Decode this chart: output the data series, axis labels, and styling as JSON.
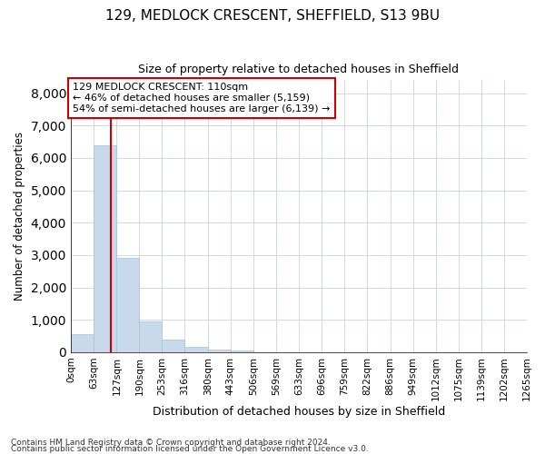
{
  "title1": "129, MEDLOCK CRESCENT, SHEFFIELD, S13 9BU",
  "title2": "Size of property relative to detached houses in Sheffield",
  "xlabel": "Distribution of detached houses by size in Sheffield",
  "ylabel": "Number of detached properties",
  "footer1": "Contains HM Land Registry data © Crown copyright and database right 2024.",
  "footer2": "Contains public sector information licensed under the Open Government Licence v3.0.",
  "bar_color": "#c8d9ec",
  "bar_edge_color": "#a8c0d8",
  "grid_color": "#d0d8e8",
  "annotation_line_color": "#cc0000",
  "annotation_box_color": "#cc0000",
  "annotation_text": "129 MEDLOCK CRESCENT: 110sqm\n← 46% of detached houses are smaller (5,159)\n54% of semi-detached houses are larger (6,139) →",
  "property_sqm": 110,
  "bin_edges": [
    0,
    63,
    127,
    190,
    253,
    316,
    380,
    443,
    506,
    569,
    633,
    696,
    759,
    822,
    886,
    949,
    1012,
    1075,
    1139,
    1202,
    1265
  ],
  "bar_heights": [
    550,
    6400,
    2900,
    950,
    380,
    160,
    90,
    60,
    0,
    0,
    0,
    0,
    0,
    0,
    0,
    0,
    0,
    0,
    0,
    0
  ],
  "tick_labels": [
    "0sqm",
    "63sqm",
    "127sqm",
    "190sqm",
    "253sqm",
    "316sqm",
    "380sqm",
    "443sqm",
    "506sqm",
    "569sqm",
    "633sqm",
    "696sqm",
    "759sqm",
    "822sqm",
    "886sqm",
    "949sqm",
    "1012sqm",
    "1075sqm",
    "1139sqm",
    "1202sqm",
    "1265sqm"
  ],
  "ylim": [
    0,
    8400
  ],
  "yticks": [
    0,
    1000,
    2000,
    3000,
    4000,
    5000,
    6000,
    7000,
    8000
  ],
  "xlim": [
    0,
    1265
  ],
  "title1_fontsize": 11,
  "title2_fontsize": 9
}
